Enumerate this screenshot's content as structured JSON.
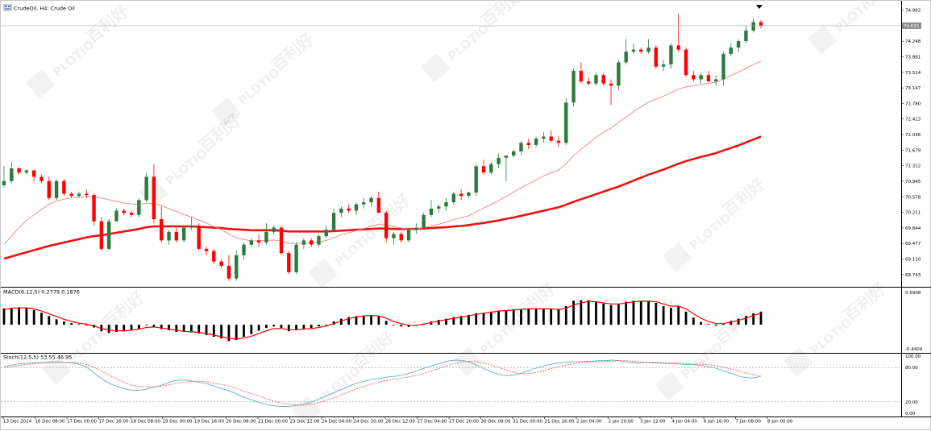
{
  "title": {
    "icon": "chart-window-icon",
    "text": "CrudeOil, H4:  Crude Oil"
  },
  "panes": {
    "macd_label": "MACD(6,12,5) 0.2779 0.1876",
    "stoch_label": "Stoch(12,5,5) 53.55 46.95"
  },
  "watermark": {
    "brand": "PLOTIO",
    "cn": "百利好"
  },
  "colors": {
    "bull": "#2d7a3e",
    "bear": "#ff0000",
    "ma_fast": "#f08080",
    "ma_slow": "#ee1111",
    "macd_bar": "#000000",
    "macd_signal": "#ff0000",
    "stoch_main": "#5fb4c8",
    "stoch_signal": "#ff5555",
    "current_price_bg": "#8a8a8a"
  },
  "axis": {
    "price_labels": [
      "74.982",
      "74.615",
      "74.248",
      "73.881",
      "73.514",
      "73.147",
      "72.780",
      "72.413",
      "72.046",
      "71.679",
      "71.312",
      "70.945",
      "70.578",
      "70.211",
      "69.844",
      "69.477",
      "69.110",
      "68.743"
    ],
    "current_price": "74.615",
    "macd_labels": [
      "0.5908",
      "-0.4404"
    ],
    "stoch_labels": [
      "100.00",
      "80.00",
      "20.00",
      "0.00"
    ],
    "time_labels": [
      "13 Dec 2024",
      "16 Dec 08:00",
      "17 Dec 00:00",
      "17 Dec 16:00",
      "18 Dec 08:00",
      "19 Dec 00:00",
      "19 Dec 16:00",
      "20 Dec 08:00",
      "21 Dec 00:00",
      "23 Dec 12:00",
      "24 Dec 04:00",
      "24 Dec 20:00",
      "26 Dec 12:00",
      "27 Dec 04:00",
      "27 Dec 20:00",
      "30 Dec 08:00",
      "31 Dec 00:00",
      "31 Dec 16:00",
      "2 Jan 04:00",
      "2 Jan 20:00",
      "3 Jan 12:00",
      "4 Jan 04:00",
      "6 Jan 16:00",
      "7 Jan 08:00",
      "8 Jan 00:00"
    ]
  },
  "chart_data": {
    "type": "candlestick",
    "symbol": "CrudeOil",
    "timeframe": "H4",
    "price_range": [
      68.55,
      75.05
    ],
    "candles": [
      {
        "o": 70.85,
        "h": 71.3,
        "l": 70.8,
        "c": 70.95
      },
      {
        "o": 70.95,
        "h": 71.4,
        "l": 70.9,
        "c": 71.25
      },
      {
        "o": 71.25,
        "h": 71.28,
        "l": 71.1,
        "c": 71.15
      },
      {
        "o": 71.15,
        "h": 71.22,
        "l": 71.1,
        "c": 71.2
      },
      {
        "o": 71.2,
        "h": 71.22,
        "l": 70.95,
        "c": 71.05
      },
      {
        "o": 71.05,
        "h": 71.1,
        "l": 70.9,
        "c": 70.95
      },
      {
        "o": 70.95,
        "h": 71.05,
        "l": 70.5,
        "c": 70.55
      },
      {
        "o": 70.55,
        "h": 71.0,
        "l": 70.5,
        "c": 70.95
      },
      {
        "o": 70.95,
        "h": 71.0,
        "l": 70.6,
        "c": 70.65
      },
      {
        "o": 70.65,
        "h": 70.7,
        "l": 70.55,
        "c": 70.6
      },
      {
        "o": 70.6,
        "h": 70.7,
        "l": 70.55,
        "c": 70.65
      },
      {
        "o": 70.65,
        "h": 70.75,
        "l": 70.55,
        "c": 70.62
      },
      {
        "o": 70.62,
        "h": 70.65,
        "l": 69.9,
        "c": 70.0
      },
      {
        "o": 70.0,
        "h": 70.1,
        "l": 69.3,
        "c": 69.35
      },
      {
        "o": 69.35,
        "h": 70.05,
        "l": 69.3,
        "c": 70.0
      },
      {
        "o": 70.0,
        "h": 70.3,
        "l": 70.0,
        "c": 70.25
      },
      {
        "o": 70.25,
        "h": 70.3,
        "l": 70.15,
        "c": 70.2
      },
      {
        "o": 70.2,
        "h": 70.25,
        "l": 70.1,
        "c": 70.15
      },
      {
        "o": 70.15,
        "h": 70.55,
        "l": 70.1,
        "c": 70.5
      },
      {
        "o": 70.5,
        "h": 71.15,
        "l": 70.45,
        "c": 71.05
      },
      {
        "o": 71.05,
        "h": 71.35,
        "l": 69.95,
        "c": 70.05
      },
      {
        "o": 70.05,
        "h": 70.35,
        "l": 69.5,
        "c": 69.55
      },
      {
        "o": 69.55,
        "h": 69.8,
        "l": 69.45,
        "c": 69.75
      },
      {
        "o": 69.75,
        "h": 69.85,
        "l": 69.5,
        "c": 69.55
      },
      {
        "o": 69.55,
        "h": 69.9,
        "l": 69.5,
        "c": 69.85
      },
      {
        "o": 69.85,
        "h": 70.1,
        "l": 69.8,
        "c": 69.9
      },
      {
        "o": 69.9,
        "h": 69.95,
        "l": 69.3,
        "c": 69.35
      },
      {
        "o": 69.35,
        "h": 69.4,
        "l": 69.2,
        "c": 69.3
      },
      {
        "o": 69.3,
        "h": 69.35,
        "l": 69.0,
        "c": 69.05
      },
      {
        "o": 69.05,
        "h": 69.1,
        "l": 68.9,
        "c": 68.95
      },
      {
        "o": 68.95,
        "h": 69.2,
        "l": 68.6,
        "c": 68.65
      },
      {
        "o": 68.65,
        "h": 69.3,
        "l": 68.6,
        "c": 69.2
      },
      {
        "o": 69.2,
        "h": 69.5,
        "l": 69.1,
        "c": 69.45
      },
      {
        "o": 69.45,
        "h": 69.6,
        "l": 69.4,
        "c": 69.55
      },
      {
        "o": 69.55,
        "h": 69.7,
        "l": 69.4,
        "c": 69.5
      },
      {
        "o": 69.5,
        "h": 69.95,
        "l": 69.45,
        "c": 69.75
      },
      {
        "o": 69.75,
        "h": 69.9,
        "l": 69.7,
        "c": 69.85
      },
      {
        "o": 69.85,
        "h": 69.9,
        "l": 69.2,
        "c": 69.25
      },
      {
        "o": 69.25,
        "h": 69.3,
        "l": 68.75,
        "c": 68.8
      },
      {
        "o": 68.8,
        "h": 69.5,
        "l": 68.75,
        "c": 69.45
      },
      {
        "o": 69.45,
        "h": 69.6,
        "l": 69.35,
        "c": 69.55
      },
      {
        "o": 69.55,
        "h": 69.6,
        "l": 69.4,
        "c": 69.45
      },
      {
        "o": 69.45,
        "h": 69.7,
        "l": 69.4,
        "c": 69.65
      },
      {
        "o": 69.65,
        "h": 69.9,
        "l": 69.6,
        "c": 69.8
      },
      {
        "o": 69.8,
        "h": 70.3,
        "l": 69.75,
        "c": 70.2
      },
      {
        "o": 70.2,
        "h": 70.35,
        "l": 70.1,
        "c": 70.3
      },
      {
        "o": 70.3,
        "h": 70.4,
        "l": 70.2,
        "c": 70.25
      },
      {
        "o": 70.25,
        "h": 70.45,
        "l": 70.15,
        "c": 70.4
      },
      {
        "o": 70.4,
        "h": 70.55,
        "l": 70.3,
        "c": 70.45
      },
      {
        "o": 70.45,
        "h": 70.6,
        "l": 70.35,
        "c": 70.55
      },
      {
        "o": 70.55,
        "h": 70.7,
        "l": 70.2,
        "c": 70.2
      },
      {
        "o": 70.2,
        "h": 70.25,
        "l": 69.5,
        "c": 69.6
      },
      {
        "o": 69.6,
        "h": 69.75,
        "l": 69.45,
        "c": 69.7
      },
      {
        "o": 69.7,
        "h": 69.75,
        "l": 69.5,
        "c": 69.55
      },
      {
        "o": 69.55,
        "h": 69.85,
        "l": 69.5,
        "c": 69.8
      },
      {
        "o": 69.8,
        "h": 69.95,
        "l": 69.7,
        "c": 69.85
      },
      {
        "o": 69.85,
        "h": 70.2,
        "l": 69.8,
        "c": 70.15
      },
      {
        "o": 70.15,
        "h": 70.5,
        "l": 70.1,
        "c": 70.3
      },
      {
        "o": 70.3,
        "h": 70.4,
        "l": 70.2,
        "c": 70.35
      },
      {
        "o": 70.35,
        "h": 70.55,
        "l": 70.25,
        "c": 70.45
      },
      {
        "o": 70.45,
        "h": 70.7,
        "l": 70.4,
        "c": 70.65
      },
      {
        "o": 70.65,
        "h": 70.75,
        "l": 70.5,
        "c": 70.6
      },
      {
        "o": 70.6,
        "h": 70.7,
        "l": 70.55,
        "c": 70.68
      },
      {
        "o": 70.68,
        "h": 71.35,
        "l": 70.6,
        "c": 71.3
      },
      {
        "o": 71.3,
        "h": 71.45,
        "l": 71.1,
        "c": 71.15
      },
      {
        "o": 71.15,
        "h": 71.4,
        "l": 71.1,
        "c": 71.35
      },
      {
        "o": 71.35,
        "h": 71.6,
        "l": 71.25,
        "c": 71.5
      },
      {
        "o": 71.5,
        "h": 71.55,
        "l": 70.95,
        "c": 71.55
      },
      {
        "o": 71.55,
        "h": 71.7,
        "l": 71.5,
        "c": 71.65
      },
      {
        "o": 71.65,
        "h": 71.9,
        "l": 71.55,
        "c": 71.85
      },
      {
        "o": 71.85,
        "h": 71.95,
        "l": 71.7,
        "c": 71.8
      },
      {
        "o": 71.8,
        "h": 72.0,
        "l": 71.75,
        "c": 71.95
      },
      {
        "o": 71.95,
        "h": 72.1,
        "l": 71.85,
        "c": 72.0
      },
      {
        "o": 72.0,
        "h": 72.15,
        "l": 71.85,
        "c": 71.9
      },
      {
        "o": 71.9,
        "h": 72.0,
        "l": 71.75,
        "c": 71.85
      },
      {
        "o": 71.85,
        "h": 72.9,
        "l": 71.8,
        "c": 72.8
      },
      {
        "o": 72.8,
        "h": 73.6,
        "l": 72.7,
        "c": 73.55
      },
      {
        "o": 73.55,
        "h": 73.75,
        "l": 73.25,
        "c": 73.3
      },
      {
        "o": 73.3,
        "h": 73.4,
        "l": 73.2,
        "c": 73.25
      },
      {
        "o": 73.25,
        "h": 73.5,
        "l": 73.2,
        "c": 73.45
      },
      {
        "o": 73.45,
        "h": 73.5,
        "l": 73.2,
        "c": 73.25
      },
      {
        "o": 73.25,
        "h": 73.35,
        "l": 72.75,
        "c": 73.2
      },
      {
        "o": 73.2,
        "h": 73.8,
        "l": 73.1,
        "c": 73.75
      },
      {
        "o": 73.75,
        "h": 74.3,
        "l": 73.7,
        "c": 74.0
      },
      {
        "o": 74.0,
        "h": 74.2,
        "l": 73.95,
        "c": 74.05
      },
      {
        "o": 74.05,
        "h": 74.1,
        "l": 73.95,
        "c": 74.0
      },
      {
        "o": 74.0,
        "h": 74.3,
        "l": 73.95,
        "c": 74.1
      },
      {
        "o": 74.1,
        "h": 74.15,
        "l": 73.6,
        "c": 73.65
      },
      {
        "o": 73.65,
        "h": 73.8,
        "l": 73.55,
        "c": 73.7
      },
      {
        "o": 73.7,
        "h": 74.2,
        "l": 73.6,
        "c": 74.15
      },
      {
        "o": 74.15,
        "h": 74.9,
        "l": 74.0,
        "c": 74.05
      },
      {
        "o": 74.05,
        "h": 74.1,
        "l": 73.4,
        "c": 73.45
      },
      {
        "o": 73.45,
        "h": 73.55,
        "l": 73.3,
        "c": 73.35
      },
      {
        "o": 73.35,
        "h": 73.5,
        "l": 73.25,
        "c": 73.45
      },
      {
        "o": 73.45,
        "h": 73.55,
        "l": 73.3,
        "c": 73.3
      },
      {
        "o": 73.3,
        "h": 73.45,
        "l": 73.2,
        "c": 73.35
      },
      {
        "o": 73.35,
        "h": 74.0,
        "l": 73.2,
        "c": 73.95
      },
      {
        "o": 73.95,
        "h": 74.2,
        "l": 73.9,
        "c": 74.1
      },
      {
        "o": 74.1,
        "h": 74.3,
        "l": 74.0,
        "c": 74.25
      },
      {
        "o": 74.25,
        "h": 74.6,
        "l": 74.2,
        "c": 74.5
      },
      {
        "o": 74.5,
        "h": 74.8,
        "l": 74.45,
        "c": 74.7
      },
      {
        "o": 74.7,
        "h": 74.75,
        "l": 74.55,
        "c": 74.615
      }
    ],
    "ma_fast": [
      69.45,
      69.65,
      69.85,
      70.02,
      70.15,
      70.28,
      70.4,
      70.48,
      70.52,
      70.56,
      70.57,
      70.58,
      70.58,
      70.55,
      70.51,
      70.47,
      70.43,
      70.41,
      70.4,
      70.42,
      70.42,
      70.37,
      70.3,
      70.23,
      70.16,
      70.1,
      70.03,
      69.96,
      69.88,
      69.8,
      69.7,
      69.61,
      69.57,
      69.54,
      69.54,
      69.55,
      69.56,
      69.53,
      69.48,
      69.48,
      69.48,
      69.49,
      69.51,
      69.55,
      69.61,
      69.68,
      69.73,
      69.78,
      69.83,
      69.89,
      69.93,
      69.91,
      69.88,
      69.84,
      69.82,
      69.82,
      69.85,
      69.89,
      69.93,
      69.98,
      70.04,
      70.08,
      70.13,
      70.23,
      70.31,
      70.4,
      70.49,
      70.59,
      70.69,
      70.79,
      70.88,
      70.98,
      71.07,
      71.14,
      71.21,
      71.36,
      71.55,
      71.7,
      71.84,
      71.98,
      72.1,
      72.2,
      72.33,
      72.46,
      72.59,
      72.7,
      72.81,
      72.88,
      72.95,
      73.04,
      73.12,
      73.17,
      73.2,
      73.23,
      73.26,
      73.28,
      73.36,
      73.44,
      73.52,
      73.61,
      73.7,
      73.78
    ],
    "ma_slow": [
      69.12,
      69.17,
      69.22,
      69.27,
      69.32,
      69.37,
      69.42,
      69.46,
      69.5,
      69.54,
      69.58,
      69.62,
      69.65,
      69.67,
      69.7,
      69.73,
      69.76,
      69.79,
      69.82,
      69.86,
      69.88,
      69.88,
      69.88,
      69.88,
      69.88,
      69.88,
      69.87,
      69.86,
      69.85,
      69.84,
      69.82,
      69.81,
      69.8,
      69.79,
      69.79,
      69.79,
      69.79,
      69.78,
      69.76,
      69.76,
      69.76,
      69.76,
      69.76,
      69.76,
      69.77,
      69.78,
      69.79,
      69.8,
      69.81,
      69.82,
      69.83,
      69.83,
      69.82,
      69.82,
      69.82,
      69.82,
      69.83,
      69.84,
      69.85,
      69.86,
      69.88,
      69.89,
      69.91,
      69.94,
      69.96,
      69.99,
      70.02,
      70.06,
      70.09,
      70.13,
      70.17,
      70.21,
      70.25,
      70.29,
      70.33,
      70.39,
      70.46,
      70.52,
      70.58,
      70.64,
      70.7,
      70.76,
      70.82,
      70.89,
      70.96,
      71.03,
      71.1,
      71.16,
      71.22,
      71.29,
      71.36,
      71.42,
      71.47,
      71.52,
      71.56,
      71.61,
      71.67,
      71.73,
      71.79,
      71.86,
      71.93,
      72.0
    ],
    "macd": {
      "range": [
        -0.4404,
        0.5908
      ],
      "hist": [
        0.3,
        0.31,
        0.32,
        0.31,
        0.27,
        0.22,
        0.16,
        0.1,
        0.06,
        0.03,
        0.01,
        0.0,
        -0.05,
        -0.12,
        -0.15,
        -0.13,
        -0.12,
        -0.1,
        -0.07,
        -0.01,
        -0.04,
        -0.08,
        -0.1,
        -0.13,
        -0.13,
        -0.14,
        -0.16,
        -0.19,
        -0.22,
        -0.25,
        -0.3,
        -0.28,
        -0.22,
        -0.17,
        -0.11,
        -0.06,
        -0.03,
        -0.06,
        -0.12,
        -0.1,
        -0.07,
        -0.06,
        -0.03,
        0.0,
        0.06,
        0.11,
        0.14,
        0.16,
        0.17,
        0.18,
        0.15,
        0.07,
        0.0,
        -0.03,
        -0.04,
        -0.02,
        0.02,
        0.06,
        0.09,
        0.11,
        0.14,
        0.16,
        0.18,
        0.21,
        0.22,
        0.24,
        0.26,
        0.27,
        0.28,
        0.29,
        0.3,
        0.3,
        0.3,
        0.29,
        0.28,
        0.34,
        0.44,
        0.45,
        0.45,
        0.42,
        0.39,
        0.36,
        0.38,
        0.42,
        0.44,
        0.44,
        0.44,
        0.4,
        0.34,
        0.31,
        0.34,
        0.24,
        0.13,
        0.05,
        0.01,
        -0.02,
        0.02,
        0.07,
        0.11,
        0.16,
        0.21,
        0.24
      ],
      "signal": [
        0.28,
        0.3,
        0.31,
        0.31,
        0.29,
        0.25,
        0.2,
        0.15,
        0.1,
        0.06,
        0.03,
        0.01,
        -0.02,
        -0.07,
        -0.1,
        -0.11,
        -0.11,
        -0.1,
        -0.08,
        -0.05,
        -0.04,
        -0.06,
        -0.08,
        -0.1,
        -0.12,
        -0.13,
        -0.14,
        -0.16,
        -0.19,
        -0.22,
        -0.25,
        -0.26,
        -0.24,
        -0.21,
        -0.16,
        -0.11,
        -0.07,
        -0.07,
        -0.09,
        -0.09,
        -0.08,
        -0.07,
        -0.05,
        -0.02,
        0.02,
        0.07,
        0.11,
        0.14,
        0.16,
        0.17,
        0.16,
        0.12,
        0.06,
        0.02,
        -0.01,
        -0.01,
        0.01,
        0.04,
        0.07,
        0.09,
        0.12,
        0.14,
        0.16,
        0.19,
        0.21,
        0.23,
        0.25,
        0.26,
        0.27,
        0.28,
        0.29,
        0.29,
        0.29,
        0.29,
        0.28,
        0.3,
        0.36,
        0.4,
        0.43,
        0.42,
        0.4,
        0.38,
        0.38,
        0.4,
        0.42,
        0.43,
        0.43,
        0.42,
        0.38,
        0.34,
        0.34,
        0.29,
        0.2,
        0.12,
        0.06,
        0.02,
        0.02,
        0.05,
        0.08,
        0.12,
        0.17,
        0.21
      ]
    },
    "stoch": {
      "range": [
        0,
        100
      ],
      "levels": [
        80,
        20
      ],
      "main": [
        82,
        84,
        86,
        87,
        88,
        89,
        89,
        90,
        90,
        89,
        88,
        86,
        82,
        74,
        64,
        56,
        50,
        46,
        42,
        40,
        40,
        42,
        45,
        48,
        52,
        56,
        58,
        58,
        56,
        54,
        52,
        48,
        44,
        40,
        36,
        30,
        26,
        22,
        18,
        15,
        13,
        12,
        12,
        13,
        15,
        18,
        22,
        27,
        32,
        37,
        42,
        47,
        52,
        55,
        58,
        60,
        62,
        64,
        65,
        67,
        70,
        74,
        78,
        82,
        86,
        89,
        92,
        93,
        92,
        89,
        84,
        78,
        73,
        69,
        66,
        66,
        68,
        72,
        76,
        80,
        83,
        86,
        88,
        89,
        90,
        90,
        91,
        91,
        92,
        92,
        93,
        92,
        90,
        88,
        88,
        89,
        88,
        88,
        87,
        87,
        86,
        85,
        85,
        84,
        82,
        80,
        76,
        72,
        68,
        64,
        62,
        62,
        65
      ],
      "signal": [
        80,
        81,
        83,
        85,
        86,
        87,
        88,
        89,
        89,
        89,
        89,
        88,
        86,
        82,
        76,
        70,
        64,
        58,
        53,
        49,
        47,
        46,
        46,
        47,
        49,
        51,
        53,
        55,
        56,
        56,
        55,
        53,
        51,
        48,
        45,
        41,
        37,
        33,
        29,
        25,
        21,
        18,
        16,
        15,
        14,
        15,
        17,
        20,
        24,
        28,
        33,
        37,
        42,
        46,
        50,
        53,
        56,
        58,
        60,
        62,
        64,
        66,
        69,
        73,
        77,
        81,
        85,
        88,
        90,
        91,
        90,
        88,
        85,
        81,
        77,
        73,
        70,
        69,
        70,
        72,
        75,
        78,
        81,
        84,
        86,
        88,
        89,
        90,
        90,
        91,
        91,
        92,
        92,
        91,
        90,
        89,
        89,
        89,
        88,
        88,
        88,
        87,
        86,
        86,
        85,
        84,
        82,
        79,
        76,
        73,
        70,
        67,
        65
      ]
    }
  }
}
